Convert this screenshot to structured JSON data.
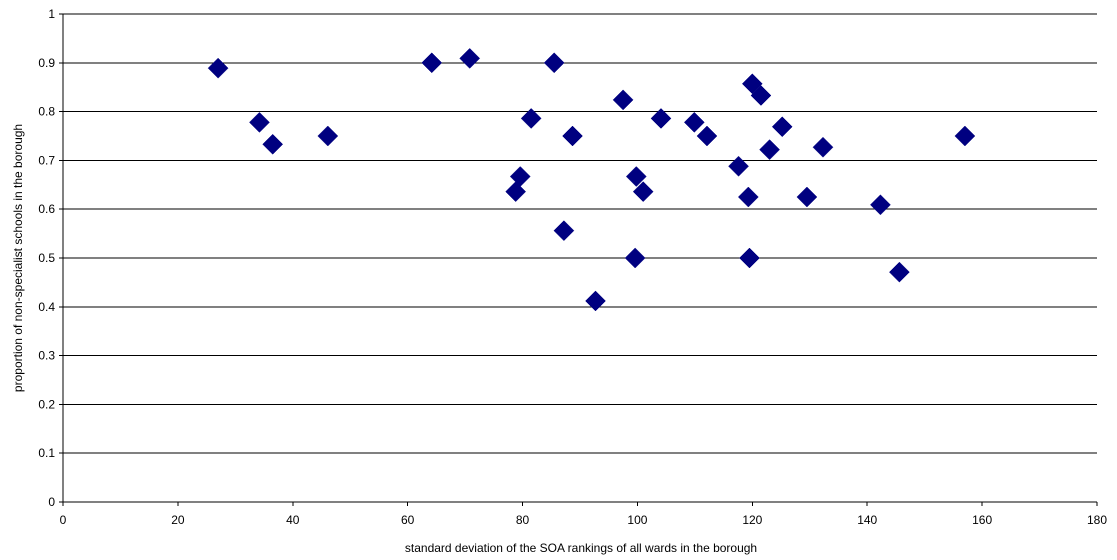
{
  "chart_data": {
    "type": "scatter",
    "title": "",
    "xlabel": "standard deviation of the SOA rankings of all wards in the borough",
    "ylabel": "proportion of non-specialist schools in the borough",
    "xlim": [
      0,
      180
    ],
    "ylim": [
      0,
      1
    ],
    "x_ticks": [
      "0",
      "20",
      "40",
      "60",
      "80",
      "100",
      "120",
      "140",
      "160",
      "180"
    ],
    "y_ticks": [
      "0",
      "0.1",
      "0.2",
      "0.3",
      "0.4",
      "0.5",
      "0.6",
      "0.7",
      "0.8",
      "0.9",
      "1"
    ],
    "grid": "horizontal",
    "legend": "none",
    "marker": "diamond",
    "marker_color": "#000080",
    "points": [
      {
        "x": 27,
        "y": 0.889
      },
      {
        "x": 34.2,
        "y": 0.778
      },
      {
        "x": 36.5,
        "y": 0.733
      },
      {
        "x": 46.1,
        "y": 0.75
      },
      {
        "x": 64.2,
        "y": 0.9
      },
      {
        "x": 70.8,
        "y": 0.909
      },
      {
        "x": 78.8,
        "y": 0.636
      },
      {
        "x": 79.6,
        "y": 0.667
      },
      {
        "x": 81.5,
        "y": 0.786
      },
      {
        "x": 85.5,
        "y": 0.9
      },
      {
        "x": 87.2,
        "y": 0.556
      },
      {
        "x": 88.7,
        "y": 0.75
      },
      {
        "x": 92.7,
        "y": 0.412
      },
      {
        "x": 97.5,
        "y": 0.824
      },
      {
        "x": 99.6,
        "y": 0.5
      },
      {
        "x": 99.8,
        "y": 0.667
      },
      {
        "x": 101,
        "y": 0.636
      },
      {
        "x": 104.1,
        "y": 0.786
      },
      {
        "x": 109.9,
        "y": 0.778
      },
      {
        "x": 112.1,
        "y": 0.75
      },
      {
        "x": 117.6,
        "y": 0.688
      },
      {
        "x": 119.3,
        "y": 0.625
      },
      {
        "x": 119.5,
        "y": 0.5
      },
      {
        "x": 120,
        "y": 0.857
      },
      {
        "x": 121.5,
        "y": 0.833
      },
      {
        "x": 123,
        "y": 0.722
      },
      {
        "x": 125.2,
        "y": 0.769
      },
      {
        "x": 129.5,
        "y": 0.625
      },
      {
        "x": 132.3,
        "y": 0.727
      },
      {
        "x": 142.3,
        "y": 0.609
      },
      {
        "x": 145.6,
        "y": 0.471
      },
      {
        "x": 157,
        "y": 0.75
      }
    ]
  }
}
